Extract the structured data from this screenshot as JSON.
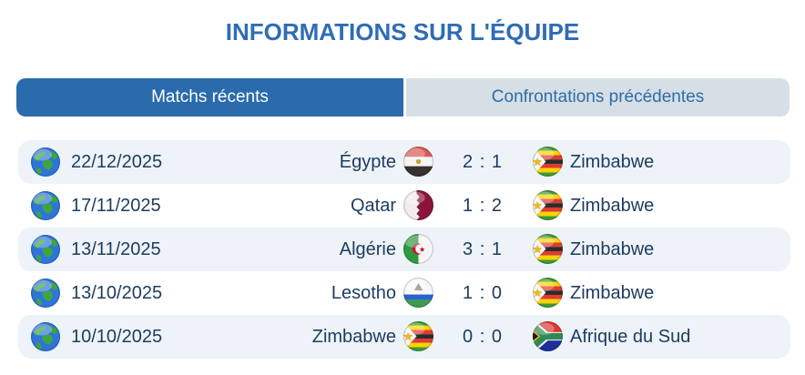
{
  "title": "INFORMATIONS SUR L'ÉQUIPE",
  "colors": {
    "title_blue": "#2E6DB4",
    "active_tab_bg": "#2A6BAD",
    "active_tab_text": "#FFFFFF",
    "inactive_tab_bg": "#D6DEE6",
    "inactive_tab_text": "#2E6DA9",
    "row_alt_bg": "#EDF3F9",
    "row_text": "#1E3C61"
  },
  "tabs": [
    {
      "label": "Matchs récents",
      "active": true
    },
    {
      "label": "Confrontations précédentes",
      "active": false
    }
  ],
  "icons": {
    "row_leading_icon": "globe-icon"
  },
  "matches": [
    {
      "date": "22/12/2025",
      "home": "Égypte",
      "home_flag": "egypt",
      "score": "2 : 1",
      "away_flag": "zimbabwe",
      "away": "Zimbabwe"
    },
    {
      "date": "17/11/2025",
      "home": "Qatar",
      "home_flag": "qatar",
      "score": "1 : 2",
      "away_flag": "zimbabwe",
      "away": "Zimbabwe"
    },
    {
      "date": "13/11/2025",
      "home": "Algérie",
      "home_flag": "algeria",
      "score": "3 : 1",
      "away_flag": "zimbabwe",
      "away": "Zimbabwe"
    },
    {
      "date": "13/10/2025",
      "home": "Lesotho",
      "home_flag": "lesotho",
      "score": "1 : 0",
      "away_flag": "zimbabwe",
      "away": "Zimbabwe"
    },
    {
      "date": "10/10/2025",
      "home": "Zimbabwe",
      "home_flag": "zimbabwe",
      "score": "0 : 0",
      "away_flag": "south-africa",
      "away": "Afrique du Sud"
    }
  ]
}
